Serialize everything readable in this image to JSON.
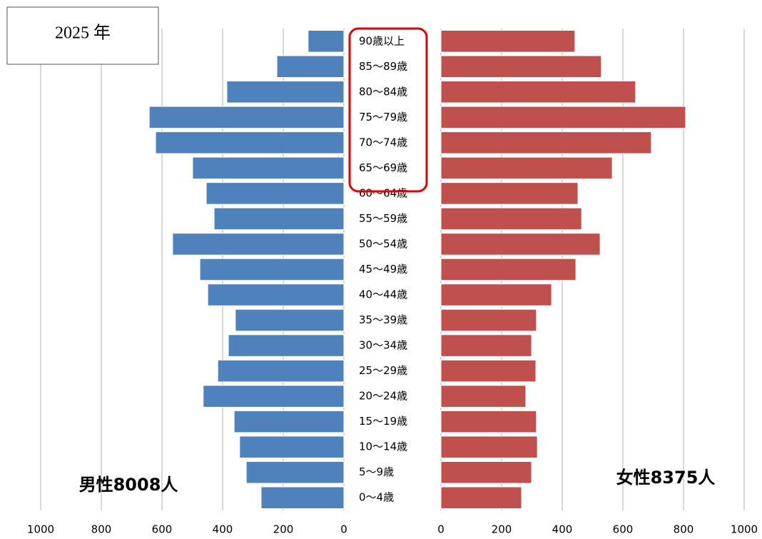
{
  "chart_data": {
    "type": "pyramid",
    "title": "2025 年",
    "categories": [
      "90歳以上",
      "85〜89歳",
      "80〜84歳",
      "75〜79歳",
      "70〜74歳",
      "65〜69歳",
      "60〜64歳",
      "55〜59歳",
      "50〜54歳",
      "45〜49歳",
      "40〜44歳",
      "35〜39歳",
      "30〜34歳",
      "25〜29歳",
      "20〜24歳",
      "15〜19歳",
      "10〜14歳",
      "5〜9歳",
      "0〜4歳"
    ],
    "series": [
      {
        "name": "男性8008人",
        "color": "#4f81bd",
        "values": [
          118,
          221,
          386,
          642,
          621,
          499,
          454,
          428,
          565,
          475,
          449,
          358,
          381,
          416,
          464,
          362,
          344,
          322,
          273
        ]
      },
      {
        "name": "女性8375人",
        "color": "#c0504d",
        "values": [
          442,
          529,
          642,
          807,
          694,
          565,
          452,
          464,
          525,
          445,
          365,
          315,
          299,
          313,
          280,
          315,
          318,
          299,
          266
        ]
      }
    ],
    "xlim": [
      0,
      1000
    ],
    "xticks": [
      0,
      200,
      400,
      600,
      800,
      1000
    ],
    "grid": true
  }
}
